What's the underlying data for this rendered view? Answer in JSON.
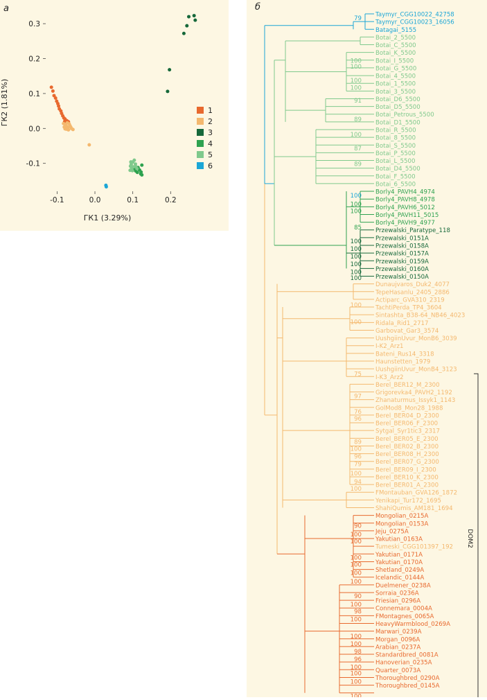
{
  "panels": {
    "a": "a",
    "b": "б"
  },
  "colors": {
    "1": "#e8692e",
    "2": "#f4b86e",
    "3": "#16683a",
    "4": "#2ea24f",
    "5": "#7fc98c",
    "6": "#1ba6d6",
    "bg": "#fdf7e3",
    "bracket": "#333333"
  },
  "chart_data": [
    {
      "type": "scatter",
      "panel": "a",
      "xlabel": "ГК1 (3.29%)",
      "ylabel": "ГК2 (1.81%)",
      "xlim": [
        -0.13,
        0.28
      ],
      "ylim": [
        -0.18,
        0.34
      ],
      "xticks": [
        -0.1,
        0.0,
        0.1,
        0.2
      ],
      "xtick_labels": [
        "-0.1",
        "0.0",
        "0.1",
        "0.2"
      ],
      "yticks": [
        -0.1,
        0.0,
        0.1,
        0.2,
        0.3
      ],
      "ytick_labels": [
        "-0.1",
        "0.0",
        "0.1",
        "0.2",
        "0.3"
      ],
      "legend": [
        "1",
        "2",
        "3",
        "4",
        "5",
        "6"
      ],
      "legend_position": "right",
      "series": [
        {
          "name": "1",
          "points": [
            [
              -0.115,
              0.118
            ],
            [
              -0.111,
              0.107
            ],
            [
              -0.108,
              0.094
            ],
            [
              -0.104,
              0.087
            ],
            [
              -0.101,
              0.078
            ],
            [
              -0.098,
              0.071
            ],
            [
              -0.096,
              0.064
            ],
            [
              -0.094,
              0.056
            ],
            [
              -0.09,
              0.05
            ],
            [
              -0.088,
              0.043
            ],
            [
              -0.085,
              0.036
            ],
            [
              -0.082,
              0.03
            ],
            [
              -0.079,
              0.027
            ],
            [
              -0.08,
              0.02
            ],
            [
              -0.074,
              0.022
            ],
            [
              -0.07,
              0.019
            ]
          ]
        },
        {
          "name": "2",
          "points": [
            [
              -0.083,
              0.014
            ],
            [
              -0.078,
              0.01
            ],
            [
              -0.075,
              0.006
            ],
            [
              -0.081,
              0.004
            ],
            [
              -0.072,
              0.002
            ],
            [
              -0.076,
              -0.002
            ],
            [
              -0.07,
              -0.004
            ],
            [
              -0.066,
              0.008
            ],
            [
              -0.062,
              0.0
            ],
            [
              -0.058,
              -0.003
            ],
            [
              -0.068,
              0.013
            ],
            [
              -0.073,
              0.016
            ],
            [
              -0.064,
              0.004
            ],
            [
              -0.079,
              -0.001
            ],
            [
              -0.015,
              -0.047
            ]
          ]
        },
        {
          "name": "3",
          "points": [
            [
              0.192,
              0.106
            ],
            [
              0.197,
              0.168
            ],
            [
              0.235,
              0.272
            ],
            [
              0.243,
              0.294
            ],
            [
              0.248,
              0.32
            ],
            [
              0.262,
              0.323
            ],
            [
              0.265,
              0.31
            ]
          ]
        },
        {
          "name": "4",
          "points": [
            [
              0.103,
              -0.118
            ],
            [
              0.108,
              -0.122
            ],
            [
              0.112,
              -0.126
            ],
            [
              0.118,
              -0.119
            ],
            [
              0.121,
              -0.13
            ],
            [
              0.107,
              -0.116
            ],
            [
              0.114,
              -0.112
            ],
            [
              0.124,
              -0.105
            ],
            [
              0.122,
              -0.125
            ],
            [
              0.124,
              -0.133
            ]
          ]
        },
        {
          "name": "5",
          "points": [
            [
              0.094,
              -0.108
            ],
            [
              0.097,
              -0.114
            ],
            [
              0.1,
              -0.096
            ],
            [
              0.104,
              -0.091
            ],
            [
              0.107,
              -0.102
            ],
            [
              0.093,
              -0.12
            ],
            [
              0.099,
              -0.121
            ],
            [
              0.111,
              -0.115
            ],
            [
              0.096,
              -0.103
            ],
            [
              0.102,
              -0.11
            ],
            [
              0.108,
              -0.109
            ],
            [
              0.095,
              -0.096
            ]
          ]
        },
        {
          "name": "6",
          "points": [
            [
              0.029,
              -0.163
            ],
            [
              0.03,
              -0.167
            ]
          ]
        }
      ]
    },
    {
      "type": "tree",
      "panel": "б",
      "bracket_label": "DOM2",
      "bracket_range": [
        47,
        89
      ],
      "leaves": [
        {
          "name": "Taymyr_CGG10022_42758",
          "group": "6"
        },
        {
          "name": "Taymyr_CGG10023_16056",
          "group": "6"
        },
        {
          "name": "Batagai_5155",
          "group": "6"
        },
        {
          "name": "Botai_2_5500",
          "group": "5"
        },
        {
          "name": "Botai_C_5500",
          "group": "5"
        },
        {
          "name": "Botai_K_5500",
          "group": "5"
        },
        {
          "name": "Botai_I_5500",
          "group": "5"
        },
        {
          "name": "Botai_G_5500",
          "group": "5"
        },
        {
          "name": "Botai_4_5500",
          "group": "5"
        },
        {
          "name": "Botai_1_5500",
          "group": "5"
        },
        {
          "name": "Botai_3_5500",
          "group": "5"
        },
        {
          "name": "Botai_D6_5500",
          "group": "5"
        },
        {
          "name": "Botai_D5_5500",
          "group": "5"
        },
        {
          "name": "Botai_Petrous_5500",
          "group": "5"
        },
        {
          "name": "Botai_D1_5500",
          "group": "5"
        },
        {
          "name": "Botai_R_5500",
          "group": "5"
        },
        {
          "name": "Botai_8_5500",
          "group": "5"
        },
        {
          "name": "Botai_S_5500",
          "group": "5"
        },
        {
          "name": "Botai_P_5500",
          "group": "5"
        },
        {
          "name": "Botai_L_5500",
          "group": "5"
        },
        {
          "name": "Botai_D4_5500",
          "group": "5"
        },
        {
          "name": "Botai_F_5500",
          "group": "5"
        },
        {
          "name": "Botai_6_5500",
          "group": "5"
        },
        {
          "name": "Borly4_PAVH4_4974",
          "group": "4"
        },
        {
          "name": "Borly4_PAVH8_4978",
          "group": "4"
        },
        {
          "name": "Borly4_PAVH6_5012",
          "group": "4"
        },
        {
          "name": "Borly4_PAVH11_5015",
          "group": "4"
        },
        {
          "name": "Borly4_PAVH9_4977",
          "group": "4"
        },
        {
          "name": "Przewalski_Paratype_118",
          "group": "3"
        },
        {
          "name": "Przewalski_0151A",
          "group": "3"
        },
        {
          "name": "Przewalski_0158A",
          "group": "3"
        },
        {
          "name": "Przewalski_0157A",
          "group": "3"
        },
        {
          "name": "Przewalski_0159A",
          "group": "3"
        },
        {
          "name": "Przewalski_0160A",
          "group": "3"
        },
        {
          "name": "Przewalski_0150A",
          "group": "3"
        },
        {
          "name": "Dunaujvaros_Duk2_4077",
          "group": "2"
        },
        {
          "name": "TepeHasanlu_2405_2886",
          "group": "2"
        },
        {
          "name": "Actiparc_GVA310_2319",
          "group": "2"
        },
        {
          "name": "TachtiPerda_TP4_3604",
          "group": "2"
        },
        {
          "name": "Sintashta_B38-64_NB46_4023",
          "group": "2"
        },
        {
          "name": "Ridala_Rid1_2717",
          "group": "2"
        },
        {
          "name": "Garbovat_Gar3_3574",
          "group": "2"
        },
        {
          "name": "UushgiinUvur_MonB6_3039",
          "group": "2"
        },
        {
          "name": "I-K2_Arz1",
          "group": "2"
        },
        {
          "name": "Bateni_Rus14_3318",
          "group": "2"
        },
        {
          "name": "Haunstetten_1979",
          "group": "2"
        },
        {
          "name": "UushgiinUvur_MonB4_3123",
          "group": "2"
        },
        {
          "name": "I-K3_Arz2",
          "group": "2"
        },
        {
          "name": "Berel_BER12_M_2300",
          "group": "2"
        },
        {
          "name": "Grigorevka4_PAVH2_1192",
          "group": "2"
        },
        {
          "name": "Zhanaturmus_Issyk1_1143",
          "group": "2"
        },
        {
          "name": "GolMod8_Mon28_1988",
          "group": "2"
        },
        {
          "name": "Berel_BER04_D_2300",
          "group": "2"
        },
        {
          "name": "Berel_BER06_F_2300",
          "group": "2"
        },
        {
          "name": "Sytgal_Syr1tic3_2317",
          "group": "2"
        },
        {
          "name": "Berel_BER05_E_2300",
          "group": "2"
        },
        {
          "name": "Berel_BER02_B_2300",
          "group": "2"
        },
        {
          "name": "Berel_BER08_H_2300",
          "group": "2"
        },
        {
          "name": "Berel_BER07_G_2300",
          "group": "2"
        },
        {
          "name": "Berel_BER09_I_2300",
          "group": "2"
        },
        {
          "name": "Berel_BER10_K_2300",
          "group": "2"
        },
        {
          "name": "Berel_BER01_A_2300",
          "group": "2"
        },
        {
          "name": "FMontauban_GVA126_1872",
          "group": "2"
        },
        {
          "name": "Yenikapi_Tur172_1695",
          "group": "2"
        },
        {
          "name": "ShahiQumis_AM181_1694",
          "group": "2"
        },
        {
          "name": "Mongolian_0215A",
          "group": "1"
        },
        {
          "name": "Mongolian_0153A",
          "group": "1"
        },
        {
          "name": "Jeju_0275A",
          "group": "1"
        },
        {
          "name": "Yakutian_0163A",
          "group": "1"
        },
        {
          "name": "Tumeski_CGG101397_192",
          "group": "2"
        },
        {
          "name": "Yakutian_0171A",
          "group": "1"
        },
        {
          "name": "Yakutian_0170A",
          "group": "1"
        },
        {
          "name": "Shetland_0249A",
          "group": "1"
        },
        {
          "name": "Icelandic_0144A",
          "group": "1"
        },
        {
          "name": "Duelmener_0238A",
          "group": "1"
        },
        {
          "name": "Sorraia_0236A",
          "group": "1"
        },
        {
          "name": "Friesian_0296A",
          "group": "1"
        },
        {
          "name": "Connemara_0004A",
          "group": "1"
        },
        {
          "name": "FMontagnes_0065A",
          "group": "1"
        },
        {
          "name": "HeavyWarmblood_0269A",
          "group": "1"
        },
        {
          "name": "Marwari_0239A",
          "group": "1"
        },
        {
          "name": "Morgan_0096A",
          "group": "1"
        },
        {
          "name": "Arabian_0237A",
          "group": "1"
        },
        {
          "name": "Standardbred_0081A",
          "group": "1"
        },
        {
          "name": "Hanoverian_0235A",
          "group": "1"
        },
        {
          "name": "Quarter_0073A",
          "group": "1"
        },
        {
          "name": "Thoroughbred_0290A",
          "group": "1"
        },
        {
          "name": "Thoroughbred_0145A",
          "group": "1"
        }
      ],
      "bootstrap_labels": [
        {
          "value": "79",
          "leaf": 0.5,
          "group": "6"
        },
        {
          "value": "100",
          "leaf": 23.5,
          "group": "6"
        },
        {
          "value": "100",
          "leaf": 6,
          "group": "5"
        },
        {
          "value": "100",
          "leaf": 6.8,
          "group": "5"
        },
        {
          "value": "100",
          "leaf": 9.5,
          "group": "5"
        },
        {
          "value": "100",
          "leaf": 8.6,
          "group": "5"
        },
        {
          "value": "91",
          "leaf": 11.2,
          "group": "5"
        },
        {
          "value": "89",
          "leaf": 13.6,
          "group": "5"
        },
        {
          "value": "100",
          "leaf": 15.6,
          "group": "5"
        },
        {
          "value": "87",
          "leaf": 17.4,
          "group": "5"
        },
        {
          "value": "89",
          "leaf": 19.4,
          "group": "5"
        },
        {
          "value": "100",
          "leaf": 24.6,
          "group": "4"
        },
        {
          "value": "100",
          "leaf": 25.5,
          "group": "4"
        },
        {
          "value": "85",
          "leaf": 27.6,
          "group": "4"
        },
        {
          "value": "100",
          "leaf": 29.4,
          "group": "3"
        },
        {
          "value": "100",
          "leaf": 30.4,
          "group": "3"
        },
        {
          "value": "100",
          "leaf": 31.4,
          "group": "3"
        },
        {
          "value": "100",
          "leaf": 32.4,
          "group": "3"
        },
        {
          "value": "100",
          "leaf": 33.4,
          "group": "3"
        },
        {
          "value": "100",
          "leaf": 34.2,
          "group": "3"
        },
        {
          "value": "100",
          "leaf": 37.7,
          "group": "2"
        },
        {
          "value": "100",
          "leaf": 39.9,
          "group": "2"
        },
        {
          "value": "75",
          "leaf": 46.6,
          "group": "2"
        },
        {
          "value": "97",
          "leaf": 49.5,
          "group": "2"
        },
        {
          "value": "76",
          "leaf": 51.5,
          "group": "2"
        },
        {
          "value": "96",
          "leaf": 52.4,
          "group": "2"
        },
        {
          "value": "89",
          "leaf": 55.4,
          "group": "2"
        },
        {
          "value": "100",
          "leaf": 56.3,
          "group": "2"
        },
        {
          "value": "96",
          "leaf": 57.3,
          "group": "2"
        },
        {
          "value": "79",
          "leaf": 58.3,
          "group": "2"
        },
        {
          "value": "100",
          "leaf": 59.5,
          "group": "2"
        },
        {
          "value": "94",
          "leaf": 60.6,
          "group": "2"
        },
        {
          "value": "100",
          "leaf": 61.5,
          "group": "2"
        },
        {
          "value": "90",
          "leaf": 66.3,
          "group": "1"
        },
        {
          "value": "100",
          "leaf": 67.4,
          "group": "1"
        },
        {
          "value": "100",
          "leaf": 68.3,
          "group": "1"
        },
        {
          "value": "100",
          "leaf": 70.4,
          "group": "1"
        },
        {
          "value": "100",
          "leaf": 71.3,
          "group": "1"
        },
        {
          "value": "100",
          "leaf": 72.4,
          "group": "1"
        },
        {
          "value": "100",
          "leaf": 73.5,
          "group": "1"
        },
        {
          "value": "90",
          "leaf": 75.4,
          "group": "1"
        },
        {
          "value": "100",
          "leaf": 76.5,
          "group": "1"
        },
        {
          "value": "98",
          "leaf": 77.4,
          "group": "1"
        },
        {
          "value": "100",
          "leaf": 78.4,
          "group": "1"
        },
        {
          "value": "100",
          "leaf": 80.6,
          "group": "1"
        },
        {
          "value": "100",
          "leaf": 81.6,
          "group": "1"
        },
        {
          "value": "98",
          "leaf": 82.6,
          "group": "1"
        },
        {
          "value": "96",
          "leaf": 83.6,
          "group": "1"
        },
        {
          "value": "100",
          "leaf": 84.6,
          "group": "1"
        },
        {
          "value": "100",
          "leaf": 85.4,
          "group": "1"
        },
        {
          "value": "100",
          "leaf": 86.5,
          "group": "1"
        },
        {
          "value": "100",
          "leaf": 88.4,
          "group": "1"
        }
      ]
    }
  ]
}
